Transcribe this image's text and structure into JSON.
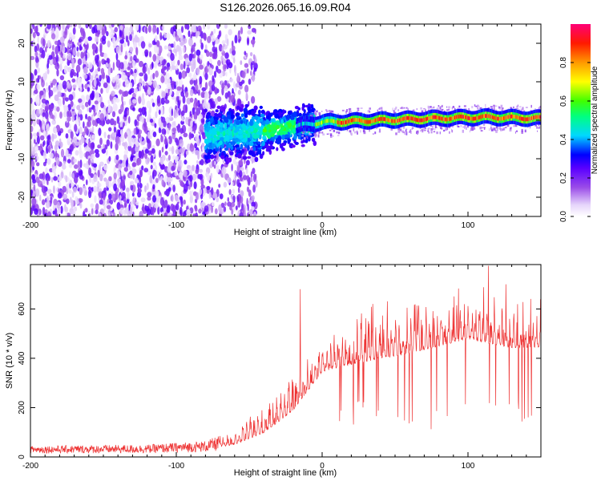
{
  "chart_data": [
    {
      "type": "heatmap",
      "title": "S126.2026.065.16.09.R04",
      "xlabel": "Height of straight line (km)",
      "ylabel": "Frequency (Hz)",
      "xlim": [
        -200,
        150
      ],
      "ylim": [
        -25,
        25
      ],
      "xticks": [
        -200,
        -100,
        0,
        100
      ],
      "xtick_labels": [
        "-200",
        "-100",
        "0",
        "100"
      ],
      "yticks": [
        -20,
        -10,
        0,
        10,
        20
      ],
      "ytick_labels": [
        "-20",
        "-10",
        "0",
        "10",
        "20"
      ],
      "colorbar": {
        "label": "Normalized spectral amplitude",
        "range": [
          0,
          1
        ],
        "ticks": [
          0,
          0.2,
          0.4,
          0.6,
          0.8
        ],
        "tick_labels": [
          "0.0",
          "0.2",
          "0.4",
          "0.6",
          "0.8"
        ],
        "colors": [
          "#ffffff",
          "#d9c2f5",
          "#8a2be2",
          "#5500ff",
          "#0000ff",
          "#00ffff",
          "#00ff00",
          "#ffff00",
          "#ff8800",
          "#ff0000",
          "#ff0066"
        ]
      },
      "regions": [
        {
          "x_range": [
            -200,
            -60
          ],
          "freq_spread": 25,
          "amplitude": 0.2,
          "description": "noise"
        },
        {
          "x_range": [
            -60,
            -15
          ],
          "freq_spread": 8,
          "amplitude": 0.35
        },
        {
          "x_range": [
            -15,
            150
          ],
          "freq_spread": 2,
          "amplitude": 0.85
        }
      ],
      "signal_center_hz": [
        {
          "x": -80,
          "f": -4
        },
        {
          "x": -50,
          "f": -3
        },
        {
          "x": -25,
          "f": -2
        },
        {
          "x": -10,
          "f": -1
        },
        {
          "x": 0,
          "f": -0.5
        },
        {
          "x": 40,
          "f": 0
        },
        {
          "x": 80,
          "f": 0.5
        },
        {
          "x": 110,
          "f": 0.8
        },
        {
          "x": 150,
          "f": 0.5
        }
      ]
    },
    {
      "type": "line",
      "xlabel": "Height of straight line (km)",
      "ylabel": "SNR (10 * v/v)",
      "xlim": [
        -200,
        150
      ],
      "ylim": [
        0,
        780
      ],
      "xticks": [
        -200,
        -100,
        0,
        100
      ],
      "xtick_labels": [
        "-200",
        "-100",
        "0",
        "100"
      ],
      "yticks": [
        0,
        200,
        400,
        600
      ],
      "ytick_labels": [
        "0",
        "200",
        "400",
        "600"
      ],
      "color": "#ee3333",
      "envelope": [
        {
          "x": -200,
          "base": 15,
          "peak": 45
        },
        {
          "x": -120,
          "base": 15,
          "peak": 50
        },
        {
          "x": -80,
          "base": 20,
          "peak": 65
        },
        {
          "x": -60,
          "base": 30,
          "peak": 110
        },
        {
          "x": -40,
          "base": 60,
          "peak": 210
        },
        {
          "x": -20,
          "base": 140,
          "peak": 330
        },
        {
          "x": 0,
          "base": 300,
          "peak": 480
        },
        {
          "x": 20,
          "base": 320,
          "peak": 540
        },
        {
          "x": 60,
          "base": 360,
          "peak": 600
        },
        {
          "x": 100,
          "base": 420,
          "peak": 650
        },
        {
          "x": 130,
          "base": 390,
          "peak": 600
        },
        {
          "x": 150,
          "base": 400,
          "peak": 580
        }
      ],
      "spikes": [
        {
          "x": -15,
          "y": 680
        },
        {
          "x": 114,
          "y": 775
        },
        {
          "x": 126,
          "y": 700
        }
      ]
    }
  ]
}
